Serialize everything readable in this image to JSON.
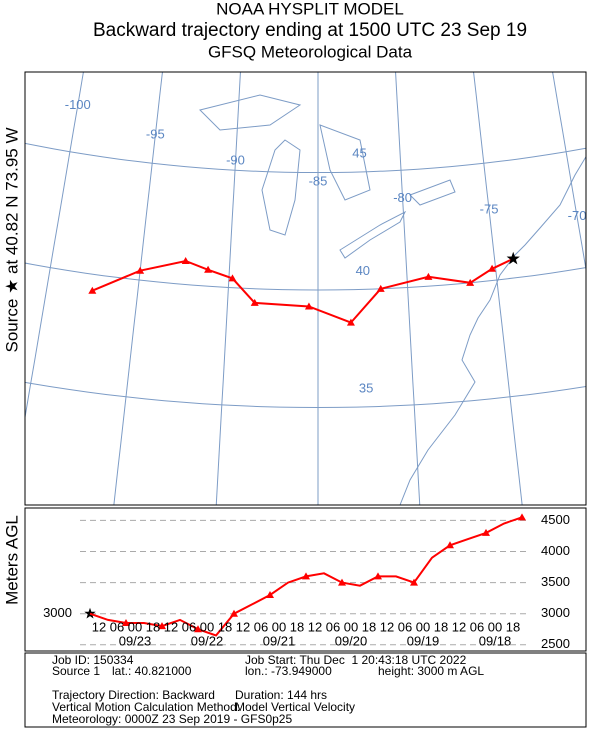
{
  "header": {
    "line1": "NOAA HYSPLIT MODEL",
    "line2": "Backward trajectory ending at 1500 UTC 23 Sep 19",
    "line3": "GFSQ Meteorological Data"
  },
  "side_label": "Source ★ at 40.82 N 73.95 W",
  "map": {
    "source": {
      "lat": 40.82,
      "lon": -73.95
    },
    "lon_labels": [
      -100,
      -95,
      -90,
      -85,
      -80,
      -75,
      -70
    ],
    "lat_labels": [
      35,
      40,
      45
    ],
    "trajectory": {
      "color": "#ff0000",
      "lat": [
        40.82,
        40.5,
        40.0,
        40.4,
        40.0,
        38.6,
        39.3,
        39.4,
        40.4,
        40.7,
        41.0,
        40.4,
        39.3
      ],
      "lon": [
        -73.95,
        -75.2,
        -76.5,
        -78.8,
        -81.5,
        -83.2,
        -85.5,
        -88.5,
        -89.8,
        -91.2,
        -92.5,
        -95.0,
        -97.5
      ]
    }
  },
  "height_chart": {
    "y_label": "Meters AGL",
    "source_height": 3000,
    "ylim": [
      2400,
      4700
    ],
    "yticks": [
      2500,
      3000,
      3500,
      4000,
      4500
    ],
    "hours": [
      0,
      6,
      12,
      18,
      24,
      30,
      36,
      42,
      48,
      54,
      60,
      66,
      72,
      78,
      84,
      90,
      96,
      102,
      108,
      114,
      120,
      126,
      132,
      138,
      144
    ],
    "values": [
      3000,
      2900,
      2850,
      2850,
      2800,
      2900,
      2750,
      2650,
      3000,
      3150,
      3300,
      3500,
      3600,
      3650,
      3500,
      3450,
      3600,
      3600,
      3500,
      3900,
      4100,
      4200,
      4300,
      4450,
      4550
    ],
    "time_labels": [
      "12",
      "06",
      "00",
      "18",
      "12",
      "06",
      "00",
      "18",
      "12",
      "06",
      "00",
      "18",
      "12",
      "06",
      "00",
      "18",
      "12",
      "06",
      "00",
      "18",
      "12",
      "06",
      "00",
      "18"
    ],
    "dates": [
      "09/23",
      "09/22",
      "09/21",
      "09/20",
      "09/19",
      "09/18"
    ]
  },
  "footer": {
    "rows": [
      [
        "Job ID: 150334",
        "Job Start: Thu Dec  1 20:43:18 UTC 2022"
      ],
      [
        "Source 1",
        "lat.: 40.821000",
        "lon.: -73.949000",
        "height: 3000 m AGL"
      ],
      [
        "Trajectory Direction: Backward",
        "Duration: 144 hrs"
      ],
      [
        "Vertical Motion Calculation Method:",
        "Model Vertical Velocity"
      ],
      [
        "Meteorology: 0000Z 23 Sep 2019 - GFS0p25"
      ]
    ]
  }
}
